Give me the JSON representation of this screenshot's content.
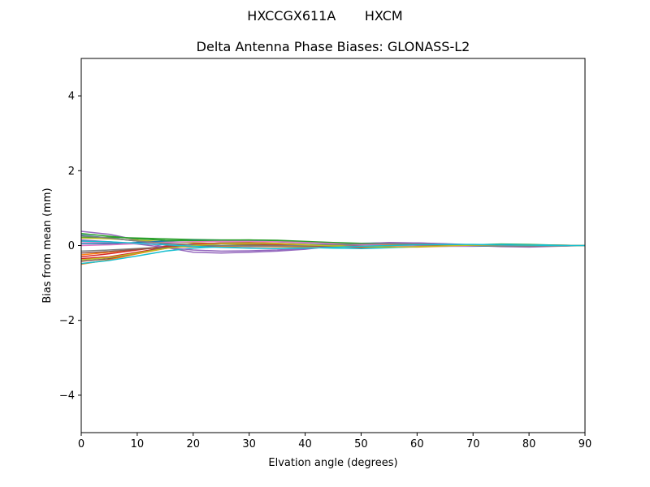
{
  "figure": {
    "suptitle": "HXCCGX611A       HXCM"
  },
  "chart_data": {
    "type": "line",
    "title": "Delta Antenna Phase Biases: GLONASS-L2",
    "xlabel": "Elvation angle (degrees)",
    "ylabel": "Bias from mean (mm)",
    "xlim": [
      0,
      90
    ],
    "ylim": [
      -5,
      5
    ],
    "xticks": [
      0,
      10,
      20,
      30,
      40,
      50,
      60,
      70,
      80,
      90
    ],
    "xtick_labels": [
      "0",
      "10",
      "20",
      "30",
      "40",
      "50",
      "60",
      "70",
      "80",
      "90"
    ],
    "yticks": [
      -4,
      -2,
      0,
      2,
      4
    ],
    "ytick_labels": [
      "−4",
      "−2",
      "0",
      "2",
      "4"
    ],
    "grid": false,
    "x": [
      0,
      5,
      10,
      15,
      20,
      25,
      30,
      35,
      40,
      45,
      50,
      55,
      60,
      65,
      70,
      75,
      80,
      85,
      90
    ],
    "series": [
      {
        "color": "#1f77b4",
        "values": [
          0.28,
          0.2,
          0.12,
          0.05,
          0.0,
          -0.02,
          -0.03,
          -0.02,
          0.0,
          0.03,
          0.06,
          0.07,
          0.06,
          0.03,
          0.0,
          -0.02,
          -0.03,
          -0.01,
          0.0
        ]
      },
      {
        "color": "#ff7f0e",
        "values": [
          -0.5,
          -0.38,
          -0.22,
          -0.08,
          0.02,
          0.07,
          0.08,
          0.06,
          0.03,
          -0.01,
          -0.04,
          -0.05,
          -0.04,
          -0.02,
          0.0,
          0.02,
          0.02,
          0.01,
          0.0
        ]
      },
      {
        "color": "#2ca02c",
        "values": [
          0.22,
          0.22,
          0.2,
          0.18,
          0.16,
          0.15,
          0.15,
          0.13,
          0.1,
          0.06,
          0.03,
          0.01,
          0.0,
          0.0,
          0.02,
          0.04,
          0.03,
          0.01,
          0.0
        ]
      },
      {
        "color": "#d62728",
        "values": [
          -0.35,
          -0.3,
          -0.18,
          -0.05,
          0.02,
          0.05,
          0.05,
          0.03,
          0.0,
          -0.03,
          -0.05,
          -0.04,
          -0.02,
          0.0,
          0.01,
          0.0,
          -0.01,
          -0.01,
          0.0
        ]
      },
      {
        "color": "#9467bd",
        "values": [
          0.38,
          0.3,
          0.15,
          -0.05,
          -0.18,
          -0.2,
          -0.18,
          -0.15,
          -0.1,
          -0.02,
          0.05,
          0.08,
          0.07,
          0.04,
          0.0,
          -0.03,
          -0.04,
          -0.02,
          0.0
        ]
      },
      {
        "color": "#8c564b",
        "values": [
          -0.42,
          -0.35,
          -0.2,
          -0.06,
          0.03,
          0.07,
          0.07,
          0.05,
          0.02,
          -0.01,
          -0.03,
          -0.03,
          -0.02,
          -0.01,
          0.0,
          0.01,
          0.01,
          0.0,
          0.0
        ]
      },
      {
        "color": "#e377c2",
        "values": [
          0.1,
          0.08,
          0.05,
          0.02,
          0.0,
          -0.02,
          -0.03,
          -0.03,
          -0.02,
          0.0,
          0.03,
          0.05,
          0.05,
          0.03,
          0.0,
          -0.02,
          -0.02,
          -0.01,
          0.0
        ]
      },
      {
        "color": "#7f7f7f",
        "values": [
          -0.15,
          -0.12,
          -0.08,
          -0.04,
          -0.02,
          0.0,
          0.01,
          0.02,
          0.02,
          0.02,
          0.01,
          0.0,
          0.0,
          0.0,
          0.01,
          0.01,
          0.0,
          0.0,
          0.0
        ]
      },
      {
        "color": "#bcbd22",
        "values": [
          0.2,
          0.18,
          0.14,
          0.1,
          0.07,
          0.05,
          0.03,
          0.02,
          0.01,
          0.0,
          -0.01,
          -0.02,
          -0.02,
          -0.01,
          0.0,
          0.01,
          0.01,
          0.0,
          0.0
        ]
      },
      {
        "color": "#17becf",
        "values": [
          -0.48,
          -0.4,
          -0.28,
          -0.15,
          -0.07,
          -0.03,
          -0.02,
          -0.03,
          -0.05,
          -0.07,
          -0.08,
          -0.06,
          -0.03,
          0.0,
          0.02,
          0.03,
          0.02,
          0.01,
          0.0
        ]
      },
      {
        "color": "#1f77b4",
        "values": [
          0.05,
          0.05,
          0.08,
          0.12,
          0.14,
          0.14,
          0.12,
          0.1,
          0.07,
          0.04,
          0.02,
          0.0,
          -0.01,
          -0.02,
          -0.02,
          -0.01,
          0.0,
          0.0,
          0.0
        ]
      },
      {
        "color": "#ff7f0e",
        "values": [
          -0.25,
          -0.18,
          -0.1,
          -0.05,
          -0.03,
          -0.02,
          -0.02,
          -0.03,
          -0.03,
          -0.02,
          0.0,
          0.02,
          0.03,
          0.02,
          0.0,
          -0.01,
          -0.01,
          0.0,
          0.0
        ]
      },
      {
        "color": "#2ca02c",
        "values": [
          0.32,
          0.25,
          0.18,
          0.14,
          0.13,
          0.14,
          0.15,
          0.14,
          0.11,
          0.08,
          0.06,
          0.05,
          0.04,
          0.03,
          0.02,
          0.01,
          0.01,
          0.0,
          0.0
        ]
      },
      {
        "color": "#d62728",
        "values": [
          -0.3,
          -0.22,
          -0.12,
          -0.02,
          0.04,
          0.06,
          0.05,
          0.03,
          0.0,
          -0.02,
          -0.02,
          -0.01,
          0.0,
          0.01,
          0.01,
          0.0,
          0.0,
          0.0,
          0.0
        ]
      },
      {
        "color": "#9467bd",
        "values": [
          0.15,
          0.1,
          0.04,
          -0.05,
          -0.12,
          -0.15,
          -0.14,
          -0.12,
          -0.08,
          -0.03,
          0.02,
          0.06,
          0.07,
          0.05,
          0.02,
          0.0,
          -0.01,
          -0.01,
          0.0
        ]
      },
      {
        "color": "#8c564b",
        "values": [
          -0.2,
          -0.16,
          -0.1,
          -0.05,
          -0.02,
          0.0,
          0.01,
          0.0,
          -0.01,
          -0.02,
          -0.02,
          -0.01,
          0.0,
          0.0,
          0.0,
          0.0,
          0.0,
          0.0,
          0.0
        ]
      },
      {
        "color": "#e377c2",
        "values": [
          0.0,
          0.02,
          0.05,
          0.08,
          0.1,
          0.11,
          0.11,
          0.1,
          0.08,
          0.05,
          0.02,
          0.0,
          -0.02,
          -0.02,
          -0.01,
          0.0,
          0.0,
          0.0,
          0.0
        ]
      },
      {
        "color": "#7f7f7f",
        "values": [
          0.26,
          0.2,
          0.12,
          0.06,
          0.02,
          0.0,
          -0.01,
          -0.01,
          0.0,
          0.02,
          0.04,
          0.05,
          0.04,
          0.02,
          0.0,
          -0.02,
          -0.02,
          -0.01,
          0.0
        ]
      },
      {
        "color": "#bcbd22",
        "values": [
          -0.38,
          -0.32,
          -0.2,
          -0.08,
          0.0,
          0.05,
          0.06,
          0.05,
          0.02,
          -0.01,
          -0.03,
          -0.04,
          -0.03,
          -0.01,
          0.01,
          0.02,
          0.01,
          0.0,
          0.0
        ]
      },
      {
        "color": "#17becf",
        "values": [
          0.12,
          0.1,
          0.06,
          0.02,
          -0.02,
          -0.05,
          -0.07,
          -0.08,
          -0.07,
          -0.05,
          -0.02,
          0.0,
          0.02,
          0.03,
          0.03,
          0.02,
          0.01,
          0.0,
          0.0
        ]
      }
    ]
  }
}
